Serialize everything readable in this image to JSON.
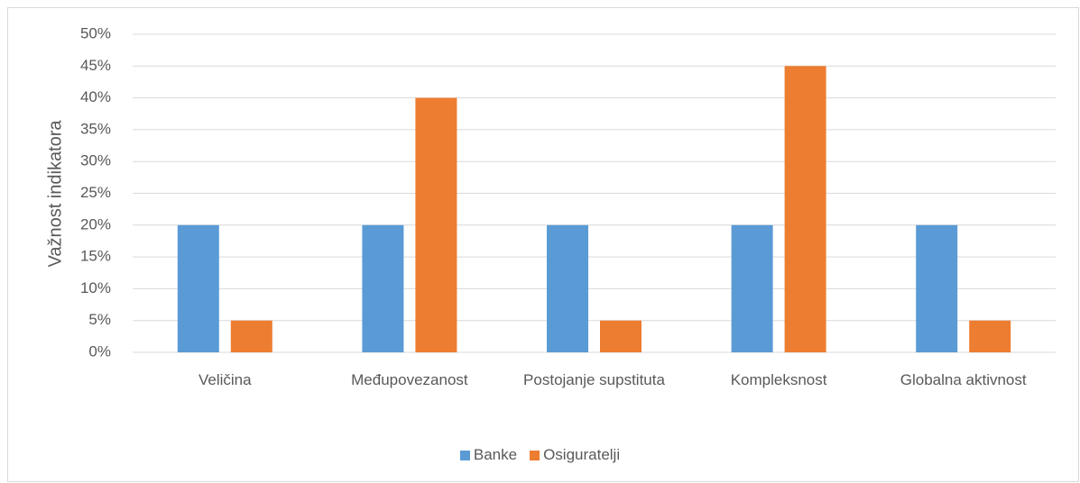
{
  "chart_data": {
    "type": "bar",
    "y_label": "Važnost indikatora",
    "categories": [
      "Veličina",
      "Međupovezanost",
      "Postojanje supstituta",
      "Kompleksnost",
      "Globalna aktivnost"
    ],
    "series": [
      {
        "name": "Banke",
        "color": "#5b9bd5",
        "values": [
          20,
          20,
          20,
          20,
          20
        ]
      },
      {
        "name": "Osiguratelji",
        "color": "#ed7d31",
        "values": [
          5,
          40,
          5,
          45,
          5
        ]
      }
    ],
    "ylim": [
      0,
      50
    ],
    "yticks": [
      {
        "value": 0,
        "label": "0%"
      },
      {
        "value": 5,
        "label": "5%"
      },
      {
        "value": 10,
        "label": "10%"
      },
      {
        "value": 15,
        "label": "15%"
      },
      {
        "value": 20,
        "label": "20%"
      },
      {
        "value": 25,
        "label": "25%"
      },
      {
        "value": 30,
        "label": "30%"
      },
      {
        "value": 35,
        "label": "35%"
      },
      {
        "value": 40,
        "label": "40%"
      },
      {
        "value": 45,
        "label": "45%"
      },
      {
        "value": 50,
        "label": "50%"
      }
    ],
    "grid": true,
    "legend": "bottom"
  }
}
